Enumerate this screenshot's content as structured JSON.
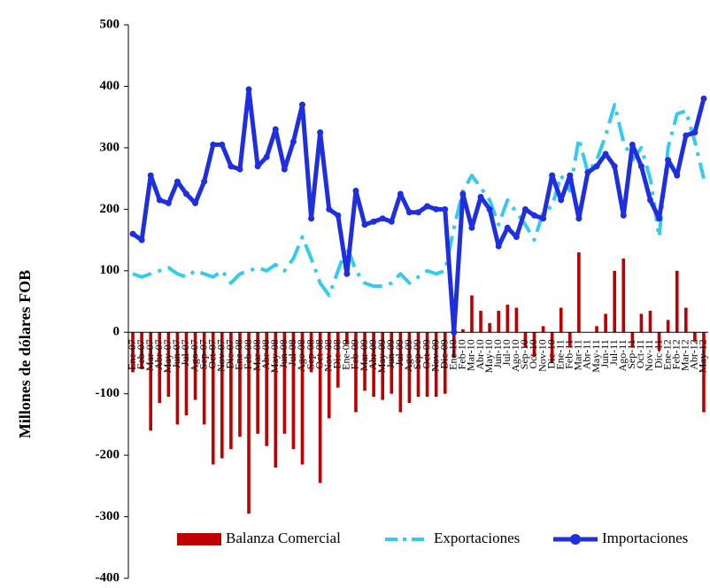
{
  "chart_data": {
    "type": "combo",
    "y_label": "Millones de dólares FOB",
    "categories": [
      "Ene-07",
      "Feb-07",
      "Mar-07",
      "Abr-07",
      "May-07",
      "Jun-07",
      "Jul-07",
      "Ago-07",
      "Sep-07",
      "Oct-07",
      "Nov-07",
      "Dic-07",
      "Ene-08",
      "Feb-08",
      "Mar-08",
      "Abr-08",
      "May-08",
      "Jun-08",
      "Jul-08",
      "Ago-08",
      "Sep-08",
      "Oct-08",
      "Nov-08",
      "Dic-08",
      "Ene-09",
      "Feb-09",
      "Mar-09",
      "Abr-09",
      "May-09",
      "Jun-09",
      "Jul-09",
      "Ago-09",
      "Sep-09",
      "Oct-09",
      "Nov-09",
      "Dic-09",
      "Ene-10",
      "Feb-10",
      "Mar-10",
      "Abr-10",
      "May-10",
      "Jun-10",
      "Jul-10",
      "Ago-10",
      "Sep-10",
      "Oct-10",
      "Nov-10",
      "Dic-10",
      "Ene-11",
      "Feb-11",
      "Mar-11",
      "Abr-11",
      "May-11",
      "Jun-11",
      "Jul-11",
      "Ago-11",
      "Sep-11",
      "Oct-11",
      "Nov-11",
      "Dic-11",
      "Ene-12",
      "Feb-12",
      "Mar-12",
      "Abr-12",
      "May-12"
    ],
    "series": [
      {
        "name": "Balanza Comercial",
        "kind": "bar",
        "color": "#c00000",
        "values": [
          -65,
          -60,
          -160,
          -115,
          -105,
          -150,
          -135,
          -110,
          -150,
          -215,
          -205,
          -190,
          -170,
          -295,
          -165,
          -185,
          -220,
          -165,
          -190,
          -215,
          -65,
          -245,
          -140,
          -90,
          -20,
          -130,
          -95,
          -105,
          -110,
          -100,
          -130,
          -115,
          -105,
          -105,
          -105,
          -100,
          -40,
          5,
          60,
          35,
          15,
          35,
          45,
          40,
          -25,
          -40,
          10,
          -50,
          40,
          -25,
          130,
          0,
          10,
          30,
          100,
          120,
          -25,
          30,
          35,
          -30,
          20,
          100,
          40,
          -15,
          -130
        ]
      },
      {
        "name": "Exportaciones",
        "kind": "dashdot",
        "color": "#33ccee",
        "values": [
          95,
          90,
          95,
          100,
          105,
          95,
          90,
          100,
          95,
          90,
          100,
          80,
          95,
          100,
          105,
          100,
          110,
          100,
          120,
          155,
          120,
          80,
          60,
          100,
          140,
          100,
          80,
          75,
          75,
          80,
          95,
          80,
          90,
          100,
          95,
          100,
          170,
          230,
          255,
          235,
          215,
          175,
          215,
          195,
          175,
          150,
          195,
          205,
          255,
          230,
          315,
          260,
          280,
          320,
          370,
          310,
          280,
          300,
          250,
          155,
          300,
          355,
          360,
          310,
          250
        ]
      },
      {
        "name": "Importaciones",
        "kind": "line-marker",
        "color": "#1f2fe0",
        "values": [
          160,
          150,
          255,
          215,
          210,
          245,
          225,
          210,
          245,
          305,
          305,
          270,
          265,
          395,
          270,
          285,
          330,
          265,
          310,
          370,
          185,
          325,
          200,
          190,
          95,
          230,
          175,
          180,
          185,
          180,
          225,
          195,
          195,
          205,
          200,
          200,
          0,
          225,
          170,
          220,
          200,
          140,
          170,
          155,
          200,
          190,
          185,
          255,
          215,
          255,
          185,
          260,
          270,
          290,
          270,
          190,
          305,
          270,
          215,
          185,
          280,
          255,
          320,
          325,
          380
        ]
      }
    ],
    "ylim": [
      -400,
      500
    ],
    "yticks": [
      -400,
      -300,
      -200,
      -100,
      0,
      100,
      200,
      300,
      400,
      500
    ]
  }
}
